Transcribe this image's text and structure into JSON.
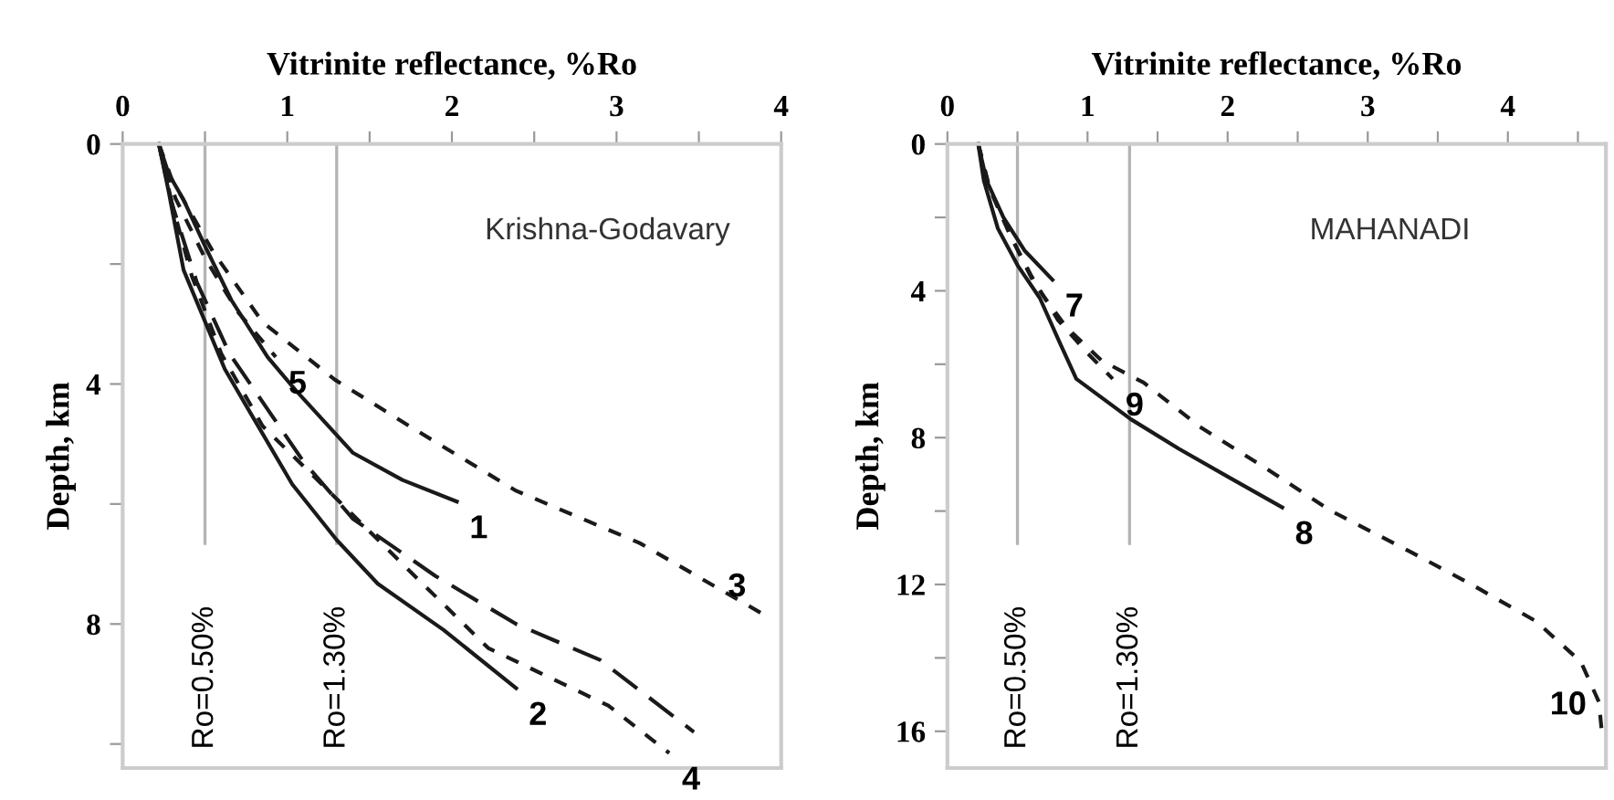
{
  "chart_data": [
    {
      "type": "line",
      "xlabel": "Vitrinite reflectance, %Ro",
      "ylabel": "Depth, km",
      "xlim": [
        0,
        4
      ],
      "ylim": [
        10.4,
        0
      ],
      "xticks": [
        0,
        {
          "value": 0.5,
          "label": null
        },
        1,
        {
          "value": 1.5,
          "label": null
        },
        2,
        {
          "value": 2.5,
          "label": null
        },
        3,
        {
          "value": 3.5,
          "label": null
        },
        4
      ],
      "yticks": [
        0,
        {
          "value": 2,
          "label": null
        },
        4,
        {
          "value": 6,
          "label": null
        },
        8,
        {
          "value": 10,
          "label": null
        }
      ],
      "legend": false,
      "grid": false,
      "marker": "none",
      "annotations": [
        "Krishna-Godavary"
      ],
      "ref_lines": [
        {
          "axis": "x",
          "value": 0.5,
          "label": "Ro=0.50%",
          "color": "#b4b4b4"
        },
        {
          "axis": "x",
          "value": 1.3,
          "label": "Ro=1.30%",
          "color": "#b4b4b4"
        }
      ],
      "series": [
        {
          "name": "1",
          "color": "#1a1a1a",
          "line_style": "solid",
          "x": [
            0.22,
            0.28,
            0.37,
            0.5,
            0.66,
            0.88,
            1.05,
            1.4,
            1.7,
            2.03
          ],
          "values": [
            0,
            0.5,
            0.93,
            1.7,
            2.6,
            3.55,
            4.1,
            5.15,
            5.6,
            5.96
          ]
        },
        {
          "name": "2",
          "color": "#1a1a1a",
          "line_style": "solid",
          "x": [
            0.22,
            0.28,
            0.37,
            0.62,
            0.78,
            1.03,
            1.3,
            1.55,
            1.95,
            2.39
          ],
          "values": [
            0,
            0.8,
            2.1,
            3.75,
            4.5,
            5.67,
            6.6,
            7.33,
            8.1,
            9.07
          ]
        },
        {
          "name": "3",
          "color": "#1a1a1a",
          "line_style": "dotted",
          "x": [
            0.22,
            0.3,
            0.55,
            0.85,
            1.29,
            1.8,
            2.39,
            3.14,
            3.88
          ],
          "values": [
            0,
            0.6,
            1.8,
            2.97,
            3.93,
            4.8,
            5.78,
            6.65,
            7.82
          ]
        },
        {
          "name": "4",
          "color": "#1a1a1a",
          "line_style": "dotted",
          "x": [
            0.22,
            0.3,
            0.42,
            0.6,
            0.85,
            1.25,
            1.7,
            2.22,
            2.95,
            3.32
          ],
          "values": [
            0,
            1,
            2.2,
            3.5,
            4.7,
            5.78,
            7.0,
            8.4,
            9.36,
            10.15
          ]
        },
        {
          "name": "5",
          "color": "#1a1a1a",
          "line_style": "dotted",
          "x": [
            0.22,
            0.32,
            0.5,
            0.7,
            0.93
          ],
          "values": [
            0,
            0.9,
            1.9,
            2.8,
            3.55
          ]
        },
        {
          "color": "#1a1a1a",
          "line_style": "dashed",
          "x": [
            0.22,
            0.3,
            0.45,
            0.65,
            0.9,
            1.1,
            1.4,
            1.9,
            2.39,
            2.9,
            3.47
          ],
          "values": [
            0,
            1,
            2.3,
            3.5,
            4.5,
            5.3,
            6.25,
            7.2,
            8.0,
            8.6,
            9.8
          ]
        }
      ]
    },
    {
      "type": "line",
      "xlabel": "Vitrinite reflectance, %Ro",
      "ylabel": "Depth, km",
      "xlim": [
        0,
        4.7
      ],
      "ylim": [
        17,
        0
      ],
      "xticks": [
        0,
        {
          "value": 0.5,
          "label": null
        },
        1,
        {
          "value": 1.5,
          "label": null
        },
        2,
        {
          "value": 2.5,
          "label": null
        },
        3,
        {
          "value": 3.5,
          "label": null
        },
        4,
        {
          "value": 4.5,
          "label": null
        }
      ],
      "yticks": [
        0,
        {
          "value": 2,
          "label": null
        },
        4,
        {
          "value": 6,
          "label": null
        },
        8,
        {
          "value": 10,
          "label": null
        },
        12,
        {
          "value": 14,
          "label": null
        },
        16
      ],
      "legend": false,
      "grid": false,
      "marker": "none",
      "annotations": [
        "MAHANADI"
      ],
      "ref_lines": [
        {
          "axis": "x",
          "value": 0.5,
          "label": "Ro=0.50%",
          "color": "#b4b4b4"
        },
        {
          "axis": "x",
          "value": 1.3,
          "label": "Ro=1.30%",
          "color": "#b4b4b4"
        }
      ],
      "series": [
        {
          "name": "7",
          "color": "#1a1a1a",
          "line_style": "solid",
          "x": [
            0.22,
            0.28,
            0.4,
            0.55,
            0.75
          ],
          "values": [
            0,
            1,
            2,
            2.9,
            3.7
          ]
        },
        {
          "name": "8",
          "color": "#1a1a1a",
          "line_style": "solid",
          "x": [
            0.22,
            0.26,
            0.36,
            0.5,
            0.66,
            0.8,
            0.92,
            1.31,
            1.65,
            2.0,
            2.39
          ],
          "values": [
            0,
            1,
            2.3,
            3.3,
            4.2,
            5.4,
            6.4,
            7.5,
            8.3,
            9.06,
            9.9
          ]
        },
        {
          "name": "9",
          "color": "#1a1a1a",
          "line_style": "dotted",
          "x": [
            0.22,
            0.3,
            0.45,
            0.6,
            0.79,
            1.0,
            1.18
          ],
          "values": [
            0,
            1.2,
            2.5,
            3.6,
            4.8,
            5.7,
            6.4
          ]
        },
        {
          "name": "10",
          "color": "#1a1a1a",
          "line_style": "dotted",
          "x": [
            0.22,
            0.3,
            0.45,
            0.62,
            0.85,
            1.1,
            1.4,
            1.8,
            2.3,
            2.74,
            3.3,
            3.74,
            4.2,
            4.52,
            4.65,
            4.67
          ],
          "values": [
            0,
            1.2,
            2.5,
            3.8,
            5.0,
            5.9,
            6.5,
            7.7,
            8.9,
            10.0,
            11.1,
            12.0,
            13.0,
            14.1,
            15.2,
            16.0
          ]
        }
      ]
    }
  ]
}
